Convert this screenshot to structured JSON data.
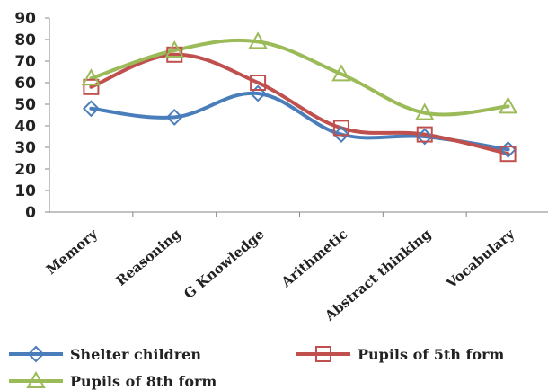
{
  "chart_data": {
    "type": "line",
    "categories": [
      "Memory",
      "Reasoning",
      "G Knowledge",
      "Arithmetic",
      "Abstract thinking",
      "Vocabulary"
    ],
    "ylim": [
      0,
      90
    ],
    "yticks": [
      0,
      10,
      20,
      30,
      40,
      50,
      60,
      70,
      80,
      90
    ],
    "grid": false,
    "legend_position": "bottom",
    "series": [
      {
        "name": "Shelter children",
        "values": [
          48,
          44,
          55,
          36,
          35,
          29
        ],
        "color": "#4a7ebb",
        "marker": "diamond"
      },
      {
        "name": "Pupils of 5th form",
        "values": [
          58,
          73,
          60,
          39,
          36,
          27
        ],
        "color": "#c0504d",
        "marker": "square"
      },
      {
        "name": "Pupils of 8th form",
        "values": [
          62,
          75,
          79,
          64,
          46,
          49
        ],
        "color": "#9bbb59",
        "marker": "triangle"
      }
    ]
  }
}
